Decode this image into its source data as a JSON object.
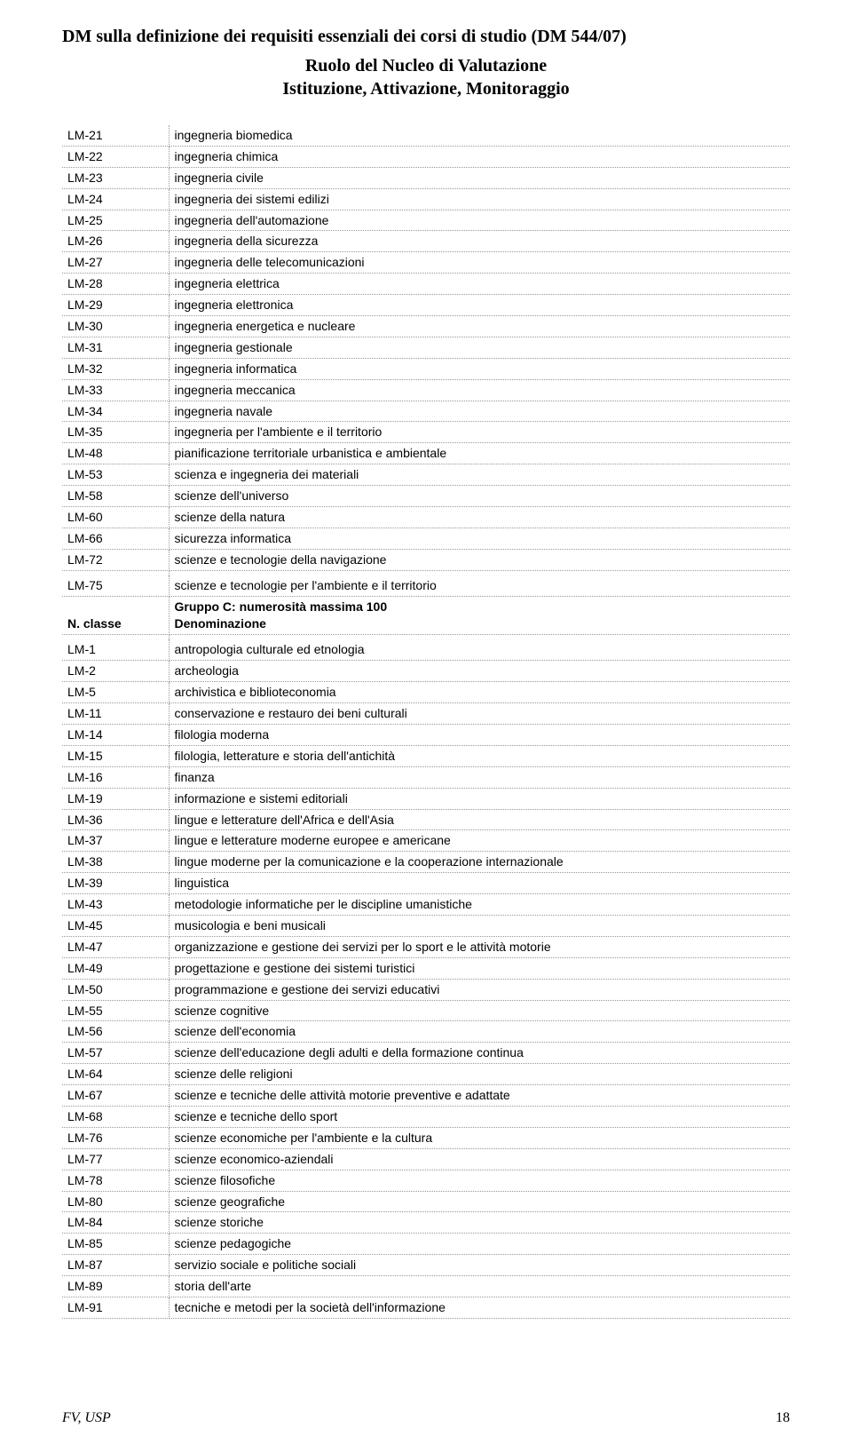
{
  "title": "DM sulla definizione dei requisiti essenziali dei corsi di studio (DM 544/07)",
  "subtitle_line1": "Ruolo del Nucleo di Valutazione",
  "subtitle_line2": "Istituzione, Attivazione, Monitoraggio",
  "group_b": {
    "rows": [
      {
        "code": "LM-21",
        "label": "ingegneria biomedica"
      },
      {
        "code": "LM-22",
        "label": "ingegneria chimica"
      },
      {
        "code": "LM-23",
        "label": "ingegneria civile"
      },
      {
        "code": "LM-24",
        "label": "ingegneria dei sistemi edilizi"
      },
      {
        "code": "LM-25",
        "label": "ingegneria dell'automazione"
      },
      {
        "code": "LM-26",
        "label": "ingegneria della sicurezza"
      },
      {
        "code": "LM-27",
        "label": "ingegneria delle telecomunicazioni"
      },
      {
        "code": "LM-28",
        "label": "ingegneria elettrica"
      },
      {
        "code": "LM-29",
        "label": "ingegneria elettronica"
      },
      {
        "code": "LM-30",
        "label": "ingegneria energetica e nucleare"
      },
      {
        "code": "LM-31",
        "label": "ingegneria gestionale"
      },
      {
        "code": "LM-32",
        "label": "ingegneria informatica"
      },
      {
        "code": "LM-33",
        "label": "ingegneria meccanica"
      },
      {
        "code": "LM-34",
        "label": "ingegneria navale"
      },
      {
        "code": "LM-35",
        "label": "ingegneria per l'ambiente e il territorio"
      },
      {
        "code": "LM-48",
        "label": "pianificazione territoriale urbanistica e ambientale"
      },
      {
        "code": "LM-53",
        "label": "scienza e ingegneria dei materiali"
      },
      {
        "code": "LM-58",
        "label": "scienze dell'universo"
      },
      {
        "code": "LM-60",
        "label": "scienze della natura"
      },
      {
        "code": "LM-66",
        "label": "sicurezza informatica"
      },
      {
        "code": "LM-72",
        "label": "scienze e tecnologie della navigazione"
      }
    ],
    "last_row": {
      "code": "LM-75",
      "label": "scienze e tecnologie per l'ambiente e il territorio"
    }
  },
  "group_c": {
    "header_code": "N. classe",
    "header_line1": "Gruppo C: numerosità massima 100",
    "header_line2": "Denominazione",
    "rows": [
      {
        "code": "LM-1",
        "label": "antropologia culturale ed etnologia"
      },
      {
        "code": "LM-2",
        "label": "archeologia"
      },
      {
        "code": "LM-5",
        "label": "archivistica e biblioteconomia"
      },
      {
        "code": "LM-11",
        "label": "conservazione e restauro dei beni culturali"
      },
      {
        "code": "LM-14",
        "label": "filologia moderna"
      },
      {
        "code": "LM-15",
        "label": "filologia, letterature e storia dell'antichità"
      },
      {
        "code": "LM-16",
        "label": "finanza"
      },
      {
        "code": "LM-19",
        "label": "informazione e sistemi editoriali"
      },
      {
        "code": "LM-36",
        "label": "lingue e letterature dell'Africa e dell'Asia"
      },
      {
        "code": "LM-37",
        "label": "lingue e letterature moderne europee e americane"
      },
      {
        "code": "LM-38",
        "label": "lingue moderne per la comunicazione e la cooperazione internazionale"
      },
      {
        "code": "LM-39",
        "label": "linguistica"
      },
      {
        "code": "LM-43",
        "label": "metodologie informatiche per le discipline umanistiche"
      },
      {
        "code": "LM-45",
        "label": "musicologia e beni musicali"
      },
      {
        "code": "LM-47",
        "label": "organizzazione e gestione dei servizi per lo sport e le attività motorie"
      },
      {
        "code": "LM-49",
        "label": "progettazione e gestione dei sistemi turistici"
      },
      {
        "code": "LM-50",
        "label": "programmazione e gestione dei servizi educativi"
      },
      {
        "code": "LM-55",
        "label": "scienze cognitive"
      },
      {
        "code": "LM-56",
        "label": "scienze dell'economia"
      },
      {
        "code": "LM-57",
        "label": "scienze dell'educazione degli adulti e della formazione continua"
      },
      {
        "code": "LM-64",
        "label": "scienze delle religioni"
      },
      {
        "code": "LM-67",
        "label": "scienze e tecniche delle attività motorie preventive e adattate"
      },
      {
        "code": "LM-68",
        "label": "scienze e tecniche dello sport"
      },
      {
        "code": "LM-76",
        "label": "scienze economiche per l'ambiente e la cultura"
      },
      {
        "code": "LM-77",
        "label": "scienze economico-aziendali"
      },
      {
        "code": "LM-78",
        "label": "scienze filosofiche"
      },
      {
        "code": "LM-80",
        "label": "scienze geografiche"
      },
      {
        "code": "LM-84",
        "label": "scienze storiche"
      },
      {
        "code": "LM-85",
        "label": "scienze pedagogiche"
      },
      {
        "code": "LM-87",
        "label": "servizio sociale e politiche sociali"
      },
      {
        "code": "LM-89",
        "label": "storia dell'arte"
      },
      {
        "code": "LM-91",
        "label": "tecniche e metodi per la società dell'informazione"
      }
    ]
  },
  "footer": {
    "left": "FV, USP",
    "page": "18"
  }
}
